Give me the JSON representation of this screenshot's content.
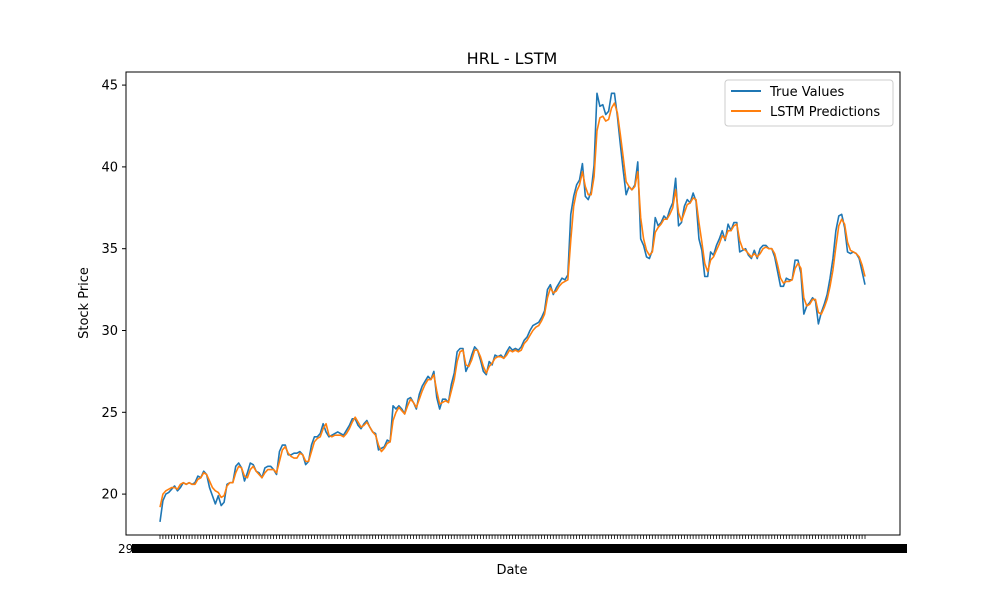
{
  "chart_data": {
    "type": "line",
    "title": "HRL - LSTM",
    "xlabel": "Date",
    "ylabel": "Stock Price",
    "ylim": [
      17.5,
      45.8
    ],
    "yticks": [
      20,
      25,
      30,
      35,
      40,
      45
    ],
    "grid": false,
    "legend_position": "top-right",
    "x_tick_labels_visible": [
      "29",
      "2"
    ],
    "series": [
      {
        "name": "True Values",
        "color": "#1f77b4",
        "values": [
          18.3,
          19.6,
          20.0,
          20.1,
          20.3,
          20.5,
          20.2,
          20.4,
          20.7,
          20.6,
          20.7,
          20.6,
          20.7,
          21.1,
          21.0,
          21.4,
          21.2,
          20.4,
          19.9,
          19.4,
          19.9,
          19.3,
          19.5,
          20.6,
          20.7,
          20.7,
          21.7,
          21.9,
          21.6,
          20.8,
          21.3,
          21.9,
          21.8,
          21.4,
          21.3,
          21.0,
          21.6,
          21.7,
          21.7,
          21.5,
          21.2,
          22.6,
          23.0,
          23.0,
          22.4,
          22.4,
          22.5,
          22.5,
          22.6,
          22.4,
          21.8,
          22.0,
          23.0,
          23.5,
          23.5,
          23.7,
          24.3,
          23.8,
          23.5,
          23.6,
          23.7,
          23.8,
          23.7,
          23.6,
          23.9,
          24.2,
          24.6,
          24.6,
          24.2,
          24.0,
          24.3,
          24.5,
          24.1,
          23.8,
          23.7,
          22.7,
          22.8,
          22.9,
          23.3,
          23.2,
          25.4,
          25.2,
          25.4,
          25.2,
          24.9,
          25.8,
          25.9,
          25.6,
          25.2,
          26.1,
          26.6,
          26.9,
          27.2,
          27.0,
          27.5,
          25.9,
          25.2,
          25.8,
          25.8,
          25.6,
          26.7,
          27.4,
          28.7,
          28.9,
          28.9,
          27.5,
          27.9,
          28.5,
          29.0,
          28.8,
          28.2,
          27.5,
          27.3,
          28.1,
          27.9,
          28.5,
          28.4,
          28.5,
          28.3,
          28.7,
          29.0,
          28.8,
          28.9,
          28.8,
          29.0,
          29.4,
          29.6,
          30.0,
          30.3,
          30.4,
          30.5,
          30.8,
          31.2,
          32.5,
          32.8,
          32.2,
          32.6,
          32.9,
          33.2,
          33.1,
          33.4,
          37.1,
          38.2,
          38.9,
          39.2,
          40.2,
          38.2,
          38.0,
          38.5,
          40.1,
          44.5,
          43.7,
          43.8,
          43.2,
          43.4,
          44.5,
          44.5,
          43.1,
          41.4,
          39.8,
          38.3,
          38.8,
          38.6,
          38.9,
          40.3,
          35.6,
          35.2,
          34.5,
          34.4,
          34.9,
          36.9,
          36.4,
          36.6,
          37.0,
          36.8,
          37.4,
          37.8,
          39.3,
          36.4,
          36.6,
          37.6,
          38.0,
          37.8,
          38.4,
          37.9,
          35.6,
          34.9,
          33.3,
          33.3,
          34.8,
          34.6,
          35.2,
          35.6,
          36.1,
          35.5,
          36.5,
          36.1,
          36.6,
          36.6,
          34.8,
          34.9,
          35.0,
          34.6,
          34.4,
          34.9,
          34.4,
          35.0,
          35.2,
          35.2,
          35.0,
          35.0,
          34.5,
          33.6,
          32.7,
          32.7,
          33.2,
          33.1,
          33.1,
          34.3,
          34.3,
          33.5,
          31.0,
          31.5,
          31.7,
          32.0,
          31.8,
          30.4,
          31.1,
          31.6,
          32.2,
          33.2,
          34.4,
          36.1,
          37.0,
          37.1,
          36.3,
          34.8,
          34.7,
          34.8,
          34.7,
          34.4,
          33.6,
          32.8
        ]
      },
      {
        "name": "LSTM Predictions",
        "color": "#ff7f0e",
        "values": [
          19.2,
          20.0,
          20.2,
          20.3,
          20.4,
          20.4,
          20.3,
          20.6,
          20.7,
          20.6,
          20.7,
          20.6,
          20.6,
          20.9,
          21.0,
          21.3,
          21.2,
          20.8,
          20.4,
          20.2,
          20.1,
          19.8,
          19.9,
          20.5,
          20.7,
          20.7,
          21.3,
          21.7,
          21.6,
          21.1,
          21.0,
          21.5,
          21.7,
          21.4,
          21.2,
          21.0,
          21.3,
          21.5,
          21.5,
          21.5,
          21.3,
          22.0,
          22.7,
          22.9,
          22.5,
          22.3,
          22.2,
          22.2,
          22.5,
          22.4,
          22.0,
          22.0,
          22.6,
          23.2,
          23.4,
          23.5,
          24.0,
          24.3,
          23.6,
          23.5,
          23.6,
          23.6,
          23.6,
          23.5,
          23.7,
          24.0,
          24.4,
          24.7,
          24.4,
          24.1,
          24.2,
          24.4,
          24.1,
          23.8,
          23.6,
          23.0,
          22.6,
          22.8,
          23.1,
          23.2,
          24.5,
          25.0,
          25.3,
          25.1,
          24.9,
          25.4,
          25.8,
          25.6,
          25.3,
          25.8,
          26.3,
          26.7,
          27.0,
          27.0,
          27.3,
          26.3,
          25.5,
          25.6,
          25.7,
          25.6,
          26.3,
          27.0,
          28.1,
          28.7,
          28.8,
          27.9,
          27.8,
          28.2,
          28.8,
          28.8,
          28.4,
          27.8,
          27.4,
          27.8,
          28.0,
          28.3,
          28.4,
          28.4,
          28.3,
          28.5,
          28.8,
          28.7,
          28.8,
          28.7,
          28.8,
          29.2,
          29.4,
          29.7,
          30.0,
          30.2,
          30.3,
          30.6,
          31.0,
          32.0,
          32.6,
          32.3,
          32.4,
          32.7,
          32.9,
          33.0,
          33.1,
          35.5,
          37.6,
          38.5,
          38.9,
          39.7,
          38.8,
          38.3,
          38.3,
          39.4,
          42.2,
          43.0,
          43.1,
          42.8,
          42.9,
          43.6,
          43.9,
          43.3,
          42.0,
          40.6,
          39.1,
          38.8,
          38.6,
          38.8,
          39.7,
          36.9,
          35.6,
          34.9,
          34.6,
          34.8,
          36.0,
          36.3,
          36.5,
          36.8,
          36.8,
          37.1,
          37.5,
          38.6,
          37.2,
          36.7,
          37.2,
          37.7,
          37.8,
          38.1,
          38.0,
          36.6,
          35.4,
          34.1,
          33.6,
          34.3,
          34.5,
          34.9,
          35.3,
          35.8,
          35.6,
          36.1,
          36.1,
          36.4,
          36.5,
          35.5,
          35.0,
          34.9,
          34.7,
          34.5,
          34.7,
          34.5,
          34.7,
          35.0,
          35.1,
          35.0,
          35.0,
          34.7,
          34.0,
          33.2,
          32.9,
          33.0,
          33.0,
          33.1,
          33.8,
          34.1,
          33.8,
          32.0,
          31.5,
          31.6,
          31.9,
          31.9,
          31.1,
          31.0,
          31.4,
          31.9,
          32.7,
          33.7,
          35.1,
          36.4,
          36.8,
          36.5,
          35.4,
          34.9,
          34.8,
          34.7,
          34.5,
          34.0,
          33.3
        ]
      }
    ]
  }
}
